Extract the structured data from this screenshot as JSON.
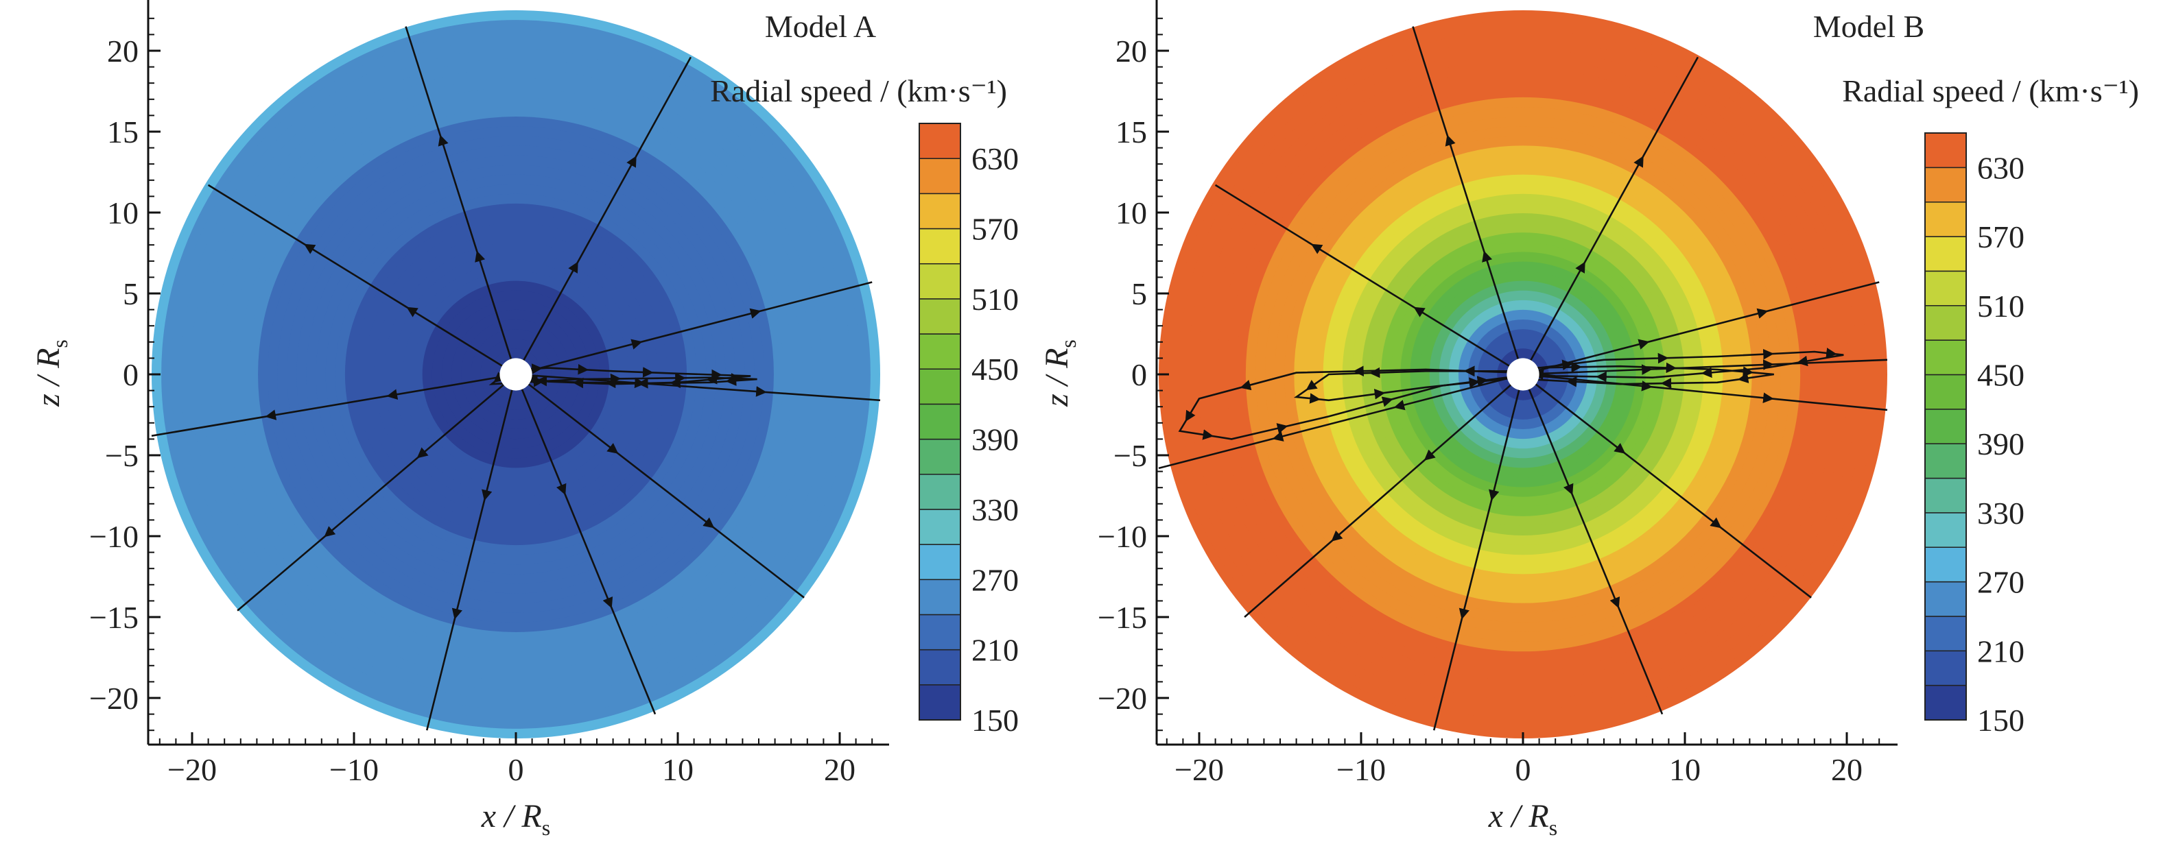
{
  "chart_data": [
    {
      "type": "heatmap",
      "title": "Model A",
      "colorbar_label": "Radial speed / (km·s⁻¹)",
      "xlabel": "x / R",
      "ylabel": "z / R",
      "axis_subscript": "s",
      "xlim": [
        -23,
        23
      ],
      "ylim": [
        -23,
        23
      ],
      "xticks": [
        -20,
        -10,
        0,
        10,
        20
      ],
      "yticks": [
        -20,
        -15,
        -10,
        -5,
        0,
        5,
        10,
        15,
        20
      ],
      "colorbar_ticks": [
        150,
        210,
        270,
        330,
        390,
        450,
        510,
        570,
        630
      ],
      "colorbar_range": [
        150,
        660
      ],
      "domain_radius": 22.5,
      "body_radius": 1,
      "radial_profile": [
        {
          "r": 1,
          "v": 160
        },
        {
          "r": 4,
          "v": 170
        },
        {
          "r": 7,
          "v": 185
        },
        {
          "r": 10,
          "v": 205
        },
        {
          "r": 13,
          "v": 225
        },
        {
          "r": 16,
          "v": 240
        },
        {
          "r": 19,
          "v": 255
        },
        {
          "r": 22.5,
          "v": 270
        }
      ],
      "field_lines": [
        {
          "x": [
            0,
            -6.8
          ],
          "y": [
            0,
            21.5
          ]
        },
        {
          "x": [
            0,
            10.8
          ],
          "y": [
            0,
            19.6
          ]
        },
        {
          "x": [
            0,
            -19.0
          ],
          "y": [
            0,
            11.7
          ]
        },
        {
          "x": [
            0,
            22.0
          ],
          "y": [
            0,
            5.7
          ]
        },
        {
          "x": [
            0,
            -22.5
          ],
          "y": [
            0,
            -3.8
          ]
        },
        {
          "x": [
            0,
            22.5
          ],
          "y": [
            0,
            -1.6
          ]
        },
        {
          "x": [
            0,
            -17.2
          ],
          "y": [
            0,
            -14.6
          ]
        },
        {
          "x": [
            0,
            17.8
          ],
          "y": [
            0,
            -13.8
          ]
        },
        {
          "x": [
            0,
            -5.5
          ],
          "y": [
            0,
            -22.0
          ]
        },
        {
          "x": [
            0,
            8.6
          ],
          "y": [
            0,
            -21.0
          ]
        },
        {
          "x": [
            -0.5,
            -1.5,
            4,
            8,
            12,
            14.9,
            12,
            8,
            4,
            -0.5
          ],
          "y": [
            0.2,
            -0.6,
            -0.3,
            -0.25,
            -0.2,
            -0.3,
            -0.5,
            -0.55,
            -0.5,
            -0.3
          ]
        },
        {
          "x": [
            0.3,
            2,
            6,
            10,
            14.5,
            10,
            6,
            2,
            0.3
          ],
          "y": [
            0.3,
            0.4,
            0.2,
            0.05,
            -0.1,
            -0.5,
            -0.6,
            -0.45,
            -0.2
          ]
        }
      ]
    },
    {
      "type": "heatmap",
      "title": "Model B",
      "colorbar_label": "Radial speed / (km·s⁻¹)",
      "xlabel": "x / R",
      "ylabel": "z / R",
      "axis_subscript": "s",
      "xlim": [
        -23,
        23
      ],
      "ylim": [
        -23,
        23
      ],
      "xticks": [
        -20,
        -10,
        0,
        10,
        20
      ],
      "yticks": [
        -20,
        -15,
        -10,
        -5,
        0,
        5,
        10,
        15,
        20
      ],
      "colorbar_ticks": [
        150,
        210,
        270,
        330,
        390,
        450,
        510,
        570,
        630
      ],
      "colorbar_range": [
        150,
        660
      ],
      "domain_radius": 22.5,
      "body_radius": 1,
      "radial_profile": [
        {
          "r": 1,
          "v": 155
        },
        {
          "r": 3,
          "v": 200
        },
        {
          "r": 4.5,
          "v": 300
        },
        {
          "r": 7,
          "v": 420
        },
        {
          "r": 10,
          "v": 510
        },
        {
          "r": 13,
          "v": 580
        },
        {
          "r": 16,
          "v": 620
        },
        {
          "r": 19,
          "v": 645
        },
        {
          "r": 22.5,
          "v": 655
        }
      ],
      "field_lines": [
        {
          "x": [
            0,
            -6.8
          ],
          "y": [
            0,
            21.5
          ]
        },
        {
          "x": [
            0,
            10.8
          ],
          "y": [
            0,
            19.6
          ]
        },
        {
          "x": [
            0,
            -19.0
          ],
          "y": [
            0,
            11.7
          ]
        },
        {
          "x": [
            0,
            22.0
          ],
          "y": [
            0,
            5.7
          ]
        },
        {
          "x": [
            0,
            -22.5
          ],
          "y": [
            0,
            -5.8
          ]
        },
        {
          "x": [
            0,
            22.5
          ],
          "y": [
            0,
            -2.2
          ]
        },
        {
          "x": [
            0,
            -17.2
          ],
          "y": [
            0,
            -15.0
          ]
        },
        {
          "x": [
            0,
            17.8
          ],
          "y": [
            0,
            -13.8
          ]
        },
        {
          "x": [
            0,
            -5.5
          ],
          "y": [
            0,
            -22.0
          ]
        },
        {
          "x": [
            0,
            8.6
          ],
          "y": [
            0,
            -21.0
          ]
        },
        {
          "x": [
            0,
            22.5
          ],
          "y": [
            0,
            0.9
          ]
        },
        {
          "x": [
            0.2,
            5,
            12,
            18,
            19.8,
            15,
            8,
            2,
            0.2
          ],
          "y": [
            0.3,
            0.9,
            1.1,
            1.4,
            1.2,
            0.4,
            -0.2,
            -0.1,
            0.1
          ]
        },
        {
          "x": [
            -0.3,
            -6,
            -14,
            -20,
            -21.2,
            -18,
            -12,
            -5,
            -0.3
          ],
          "y": [
            0.1,
            0.3,
            0.1,
            -1.5,
            -3.5,
            -4.0,
            -2.6,
            -0.7,
            -0.1
          ]
        },
        {
          "x": [
            0.3,
            6,
            12,
            15.5,
            12,
            6,
            0.3
          ],
          "y": [
            0.4,
            0.5,
            0.3,
            0.0,
            -0.5,
            -0.6,
            -0.3
          ]
        },
        {
          "x": [
            -0.3,
            -6,
            -12,
            -14,
            -12,
            -6,
            -0.3
          ],
          "y": [
            0.2,
            0.2,
            0.0,
            -1.4,
            -1.6,
            -0.8,
            -0.2
          ]
        }
      ]
    }
  ]
}
